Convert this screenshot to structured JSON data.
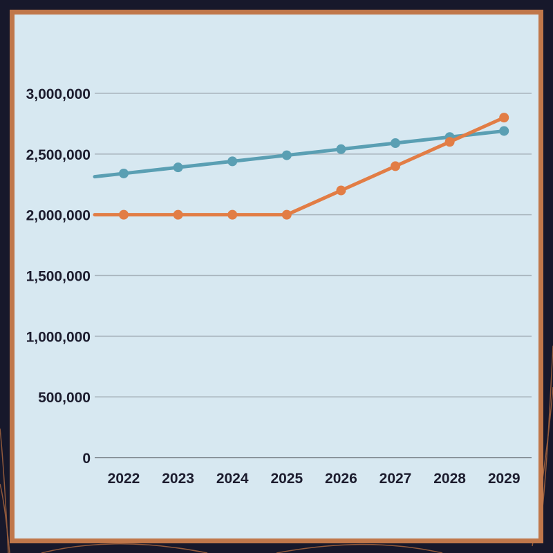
{
  "colors": {
    "background": "#17182b",
    "frame": "#c0774a",
    "panel": "#d7e8f1",
    "grid": "#a8b4bd",
    "teal": "#5a9fb3",
    "orange": "#e27d45",
    "text": "#1c1c2e"
  },
  "chart_data": {
    "type": "line",
    "title": "",
    "xlabel": "",
    "ylabel": "",
    "x": [
      "2022",
      "2023",
      "2024",
      "2025",
      "2026",
      "2027",
      "2028",
      "2029"
    ],
    "ylim": [
      0,
      3000000
    ],
    "yticks": [
      0,
      500000,
      1000000,
      1500000,
      2000000,
      2500000,
      3000000
    ],
    "ytick_labels": [
      "0",
      "500,000",
      "1,000,000",
      "1,500,000",
      "2,000,000",
      "2,500,000",
      "3,000,000"
    ],
    "grid": true,
    "legend": "none",
    "series": [
      {
        "color": "#5a9fb3",
        "values": [
          2340000,
          2390000,
          2440000,
          2490000,
          2540000,
          2590000,
          2640000,
          2690000
        ]
      },
      {
        "color": "#e27d45",
        "values": [
          2000000,
          2000000,
          2000000,
          2000000,
          2200000,
          2400000,
          2600000,
          2800000
        ]
      }
    ]
  }
}
